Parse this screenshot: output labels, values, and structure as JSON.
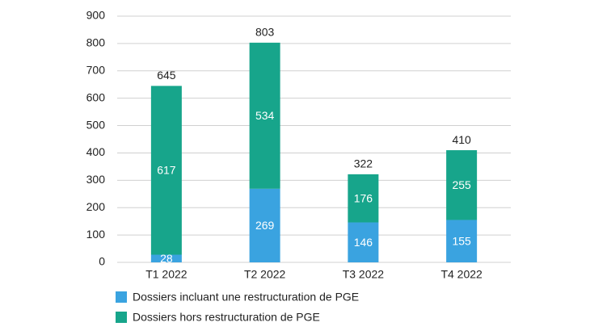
{
  "chart_data": {
    "type": "stacked_bar",
    "categories": [
      "T1 2022",
      "T2 2022",
      "T3 2022",
      "T4 2022"
    ],
    "series": [
      {
        "name": "Dossiers incluant une restructuration de PGE",
        "color": "#3aa3e0",
        "values": [
          28,
          269,
          146,
          155
        ]
      },
      {
        "name": "Dossiers hors restructuration de PGE",
        "color": "#17a58b",
        "values": [
          617,
          534,
          176,
          255
        ]
      }
    ],
    "totals": [
      645,
      803,
      322,
      410
    ],
    "ylim": [
      0,
      900
    ],
    "yticks": [
      0,
      100,
      200,
      300,
      400,
      500,
      600,
      700,
      800,
      900
    ],
    "grid": true
  }
}
